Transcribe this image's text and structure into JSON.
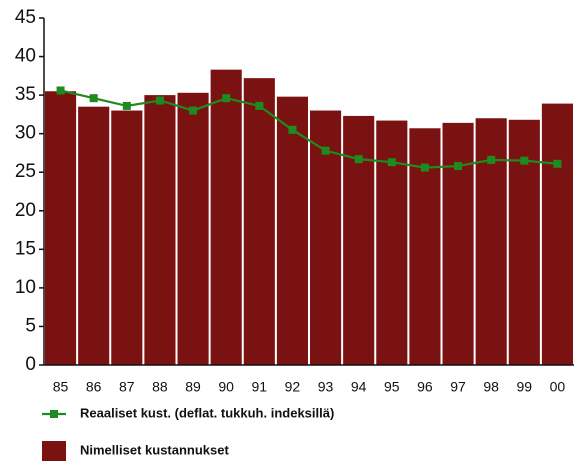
{
  "chart_data": {
    "type": "bar",
    "categories": [
      "85",
      "86",
      "87",
      "88",
      "89",
      "90",
      "91",
      "92",
      "93",
      "94",
      "95",
      "96",
      "97",
      "98",
      "99",
      "00"
    ],
    "series": [
      {
        "name": "Reaaliset kust. (deflat. tukkuh. indeksillä)",
        "type": "line",
        "color": "#1f8a1f",
        "values": [
          35.6,
          34.6,
          33.6,
          34.3,
          33.0,
          34.6,
          33.6,
          30.5,
          27.8,
          26.7,
          26.3,
          25.6,
          25.8,
          26.6,
          26.5,
          26.1
        ]
      },
      {
        "name": "Nimelliset kustannukset",
        "type": "bar",
        "color": "#7a1212",
        "values": [
          35.5,
          33.5,
          33.0,
          35.0,
          35.3,
          38.3,
          37.2,
          34.8,
          33.0,
          32.3,
          31.7,
          30.7,
          31.4,
          32.0,
          31.8,
          33.9
        ]
      }
    ],
    "ylim": [
      0,
      45
    ],
    "yticks": [
      0,
      5,
      10,
      15,
      20,
      25,
      30,
      35,
      40,
      45
    ]
  }
}
